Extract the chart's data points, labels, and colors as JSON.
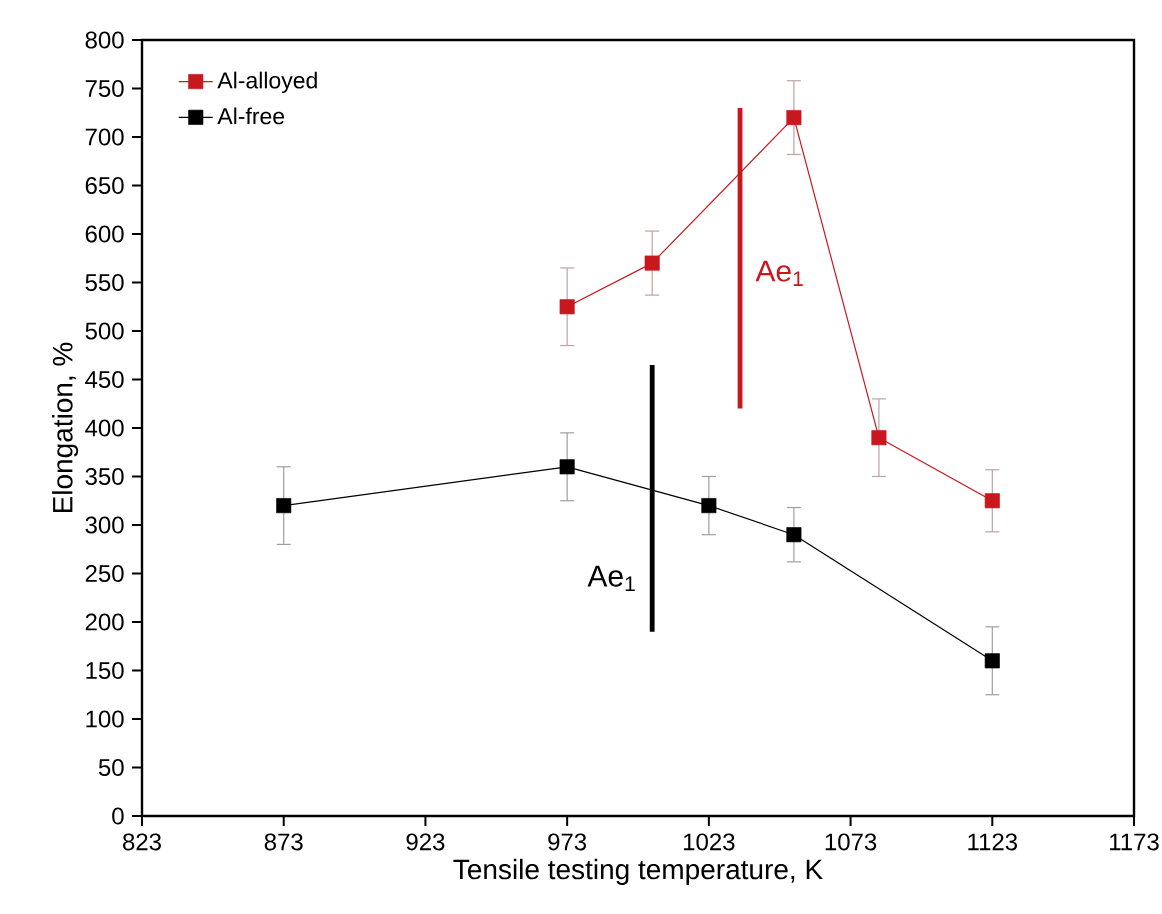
{
  "chart_data": {
    "type": "line",
    "xlabel": "Tensile testing temperature, K",
    "ylabel": "Elongation, %",
    "xlim": [
      823,
      1173
    ],
    "xticks": [
      823,
      873,
      923,
      973,
      1023,
      1073,
      1123,
      1173
    ],
    "ylim": [
      0,
      800
    ],
    "yticks": [
      0,
      50,
      100,
      150,
      200,
      250,
      300,
      350,
      400,
      450,
      500,
      550,
      600,
      650,
      700,
      750,
      800
    ],
    "marker": "square",
    "line_style": "solid",
    "legend": "top left",
    "grid": false,
    "series": [
      {
        "name": "Al-alloyed",
        "color": "#c8181e",
        "x": [
          973,
          1003,
          1053,
          1083,
          1123
        ],
        "values": [
          525,
          570,
          720,
          390,
          325
        ],
        "errors": [
          40,
          33,
          38,
          40,
          32
        ]
      },
      {
        "name": "Al-free",
        "color": "#000000",
        "x": [
          873,
          973,
          1023,
          1053,
          1123
        ],
        "values": [
          320,
          360,
          320,
          290,
          160
        ],
        "errors": [
          40,
          35,
          30,
          28,
          35
        ]
      },
      {
        "type": "line",
        "color": "#000000",
        "marker": "none",
        "x": [
          1003,
          1003
        ],
        "values": [
          190,
          465
        ]
      },
      {
        "type": "line",
        "color": "#c8181e",
        "marker": "none",
        "x": [
          1034,
          1034
        ],
        "values": [
          420,
          730
        ]
      }
    ],
    "annotations": [
      "Ae$_{1}$",
      "Ae$_{1}$"
    ]
  }
}
